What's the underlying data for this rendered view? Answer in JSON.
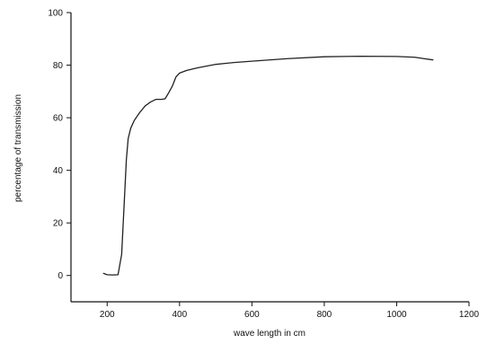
{
  "chart_data": {
    "type": "line",
    "title": "",
    "xlabel": "wave length in cm",
    "ylabel": "percentage of transmission",
    "xlim": [
      100,
      1200
    ],
    "ylim": [
      -10,
      100
    ],
    "x_ticks": [
      200,
      400,
      600,
      800,
      1000,
      1200
    ],
    "x_tick_labels": [
      "200",
      "400",
      "600",
      "800",
      "1000",
      "1200"
    ],
    "y_ticks": [
      0,
      20,
      40,
      60,
      80,
      100
    ],
    "y_tick_labels": [
      "0",
      "20",
      "40",
      "60",
      "80",
      "100"
    ],
    "grid": false,
    "legend": "none",
    "series": [
      {
        "color": "#222222",
        "x": [
          190,
          200,
          215,
          230,
          240,
          248,
          253,
          258,
          265,
          275,
          290,
          305,
          320,
          335,
          350,
          360,
          370,
          380,
          390,
          400,
          420,
          450,
          500,
          550,
          600,
          700,
          800,
          900,
          1000,
          1050,
          1075,
          1100
        ],
        "y": [
          0.8,
          0.3,
          0.2,
          0.3,
          8,
          30,
          44,
          52,
          56,
          59,
          62,
          64.5,
          66,
          67,
          67,
          67.2,
          69.5,
          72,
          75.5,
          77,
          78,
          79,
          80.3,
          81,
          81.5,
          82.5,
          83.2,
          83.4,
          83.3,
          83,
          82.5,
          82
        ]
      }
    ]
  }
}
